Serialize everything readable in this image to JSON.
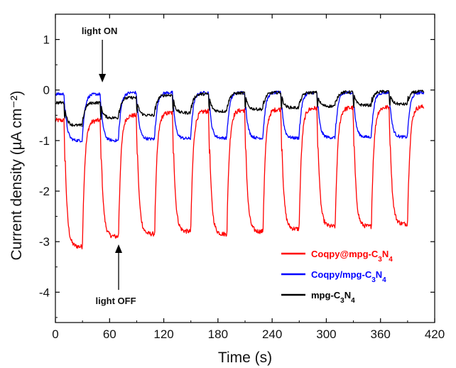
{
  "chart_data": {
    "type": "line",
    "xlabel": "Time (s)",
    "ylabel": "Current density (µA cm⁻²)",
    "xlim": [
      0,
      420
    ],
    "ylim": [
      -4.6,
      1.5
    ],
    "xticks": [
      0,
      60,
      120,
      180,
      240,
      300,
      360,
      420
    ],
    "yticks": [
      -4,
      -3,
      -2,
      -1,
      0,
      1
    ],
    "grid": false,
    "legend_position": "bottom-right",
    "period": 40,
    "on_duration": 20,
    "transitions": {
      "first_on": 30,
      "first_off": 10
    },
    "series": [
      {
        "name": "Coqpy@mpg-C3N4",
        "name_base": "Coqpy@mpg-C",
        "name_sub1": "3",
        "name_mid": "N",
        "name_sub2": "4",
        "color": "#ff0000",
        "on_levels": [
          -0.6,
          -0.5,
          -0.45,
          -0.42,
          -0.4,
          -0.38,
          -0.36,
          -0.35,
          -0.34,
          -0.33
        ],
        "off_levels": [
          -3.1,
          -2.9,
          -2.85,
          -2.8,
          -2.85,
          -2.8,
          -2.75,
          -2.7,
          -2.7,
          -2.65
        ]
      },
      {
        "name": "Coqpy/mpg-C3N4",
        "name_base": "Coqpy/mpg-C",
        "name_sub1": "3",
        "name_mid": "N",
        "name_sub2": "4",
        "color": "#0000ff",
        "on_levels": [
          -0.08,
          -0.05,
          -0.05,
          -0.05,
          -0.05,
          -0.05,
          -0.05,
          -0.05,
          -0.05,
          -0.05
        ],
        "off_levels": [
          -1.0,
          -1.0,
          -0.97,
          -0.96,
          -0.95,
          -0.95,
          -0.95,
          -0.94,
          -0.93,
          -0.93
        ]
      },
      {
        "name": "mpg-C3N4",
        "name_base": "mpg-C",
        "name_sub1": "3",
        "name_mid": "N",
        "name_sub2": "4",
        "color": "#000000",
        "on_levels": [
          -0.25,
          -0.15,
          -0.1,
          -0.08,
          -0.06,
          -0.05,
          -0.05,
          -0.04,
          -0.03,
          -0.03
        ],
        "off_levels": [
          -0.7,
          -0.55,
          -0.5,
          -0.45,
          -0.42,
          -0.38,
          -0.35,
          -0.32,
          -0.3,
          -0.28
        ]
      }
    ],
    "annotations": [
      {
        "text": "light ON",
        "x": 52,
        "y": 0
      },
      {
        "text": "light OFF",
        "x": 70,
        "y": -2.95
      }
    ]
  }
}
